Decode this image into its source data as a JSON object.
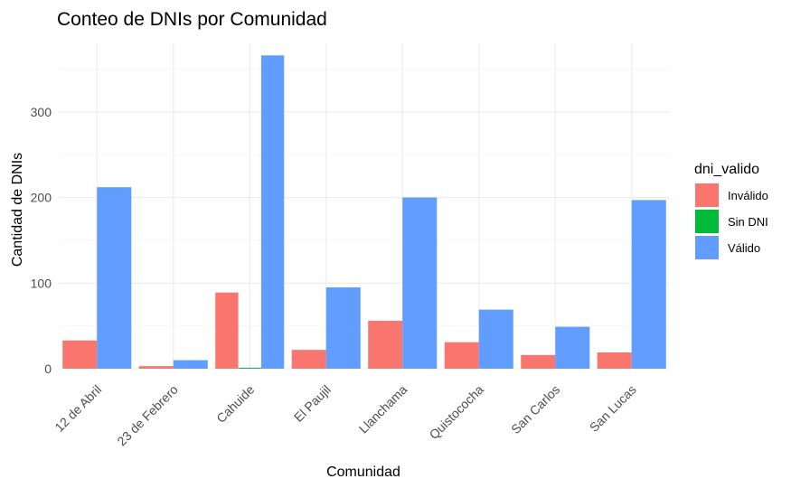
{
  "chart_data": {
    "type": "bar",
    "title": "Conteo de DNIs por Comunidad",
    "xlabel": "Comunidad",
    "ylabel": "Cantidad de DNIs",
    "ylim": [
      0,
      380
    ],
    "yticks": [
      0,
      100,
      200,
      300
    ],
    "grid": true,
    "legend": {
      "title": "dni_valido",
      "position": "right"
    },
    "categories": [
      "12 de Abril",
      "23 de Febrero",
      "Cahuide",
      "El Paujil",
      "Llanchama",
      "Quistococha",
      "San Carlos",
      "San Lucas"
    ],
    "series": [
      {
        "name": "Inválido",
        "color": "#F8766D",
        "values": [
          33,
          3,
          89,
          22,
          56,
          31,
          16,
          19
        ]
      },
      {
        "name": "Sin DNI",
        "color": "#00BA38",
        "values": [
          0,
          0,
          1,
          0,
          0,
          0,
          0,
          0
        ]
      },
      {
        "name": "Válido",
        "color": "#619CFF",
        "values": [
          212,
          10,
          366,
          95,
          200,
          69,
          49,
          197
        ]
      }
    ]
  }
}
